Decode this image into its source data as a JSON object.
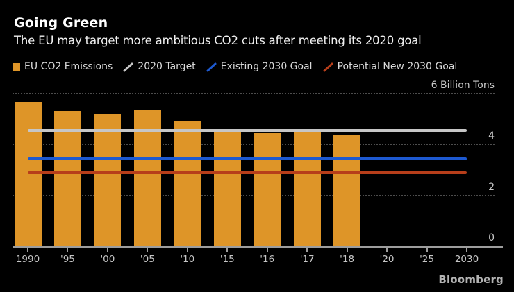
{
  "header": {
    "title": "Going Green",
    "subtitle": "The EU may target more ambitious CO2 cuts after meeting its 2020 goal"
  },
  "legend": {
    "items": [
      {
        "label": "EU CO2 Emissions",
        "swatch": "square",
        "color": "#de9528"
      },
      {
        "label": "2020 Target",
        "swatch": "line",
        "color": "#c6c6c6"
      },
      {
        "label": "Existing 2030 Goal",
        "swatch": "line",
        "color": "#1d59d0"
      },
      {
        "label": "Potential New 2030 Goal",
        "swatch": "line",
        "color": "#b73e1a"
      }
    ]
  },
  "chart_data": {
    "type": "bar",
    "title": "Going Green",
    "subtitle": "The EU may target more ambitious CO2 cuts after meeting its 2020 goal",
    "unit": "Billion Tons",
    "categories": [
      "1990",
      "'95",
      "'00",
      "'05",
      "'10",
      "'15",
      "'16",
      "'17",
      "'18",
      "'20",
      "'25",
      "2030"
    ],
    "bar_series": {
      "name": "EU CO2 Emissions",
      "color": "#de9528",
      "values": [
        5.67,
        5.33,
        5.22,
        5.34,
        4.9,
        4.46,
        4.44,
        4.48,
        4.37,
        null,
        null,
        null
      ]
    },
    "reference_lines": [
      {
        "name": "2020 Target",
        "value": 4.55,
        "color": "#c6c6c6"
      },
      {
        "name": "Existing 2030 Goal",
        "value": 3.45,
        "color": "#1d59d0"
      },
      {
        "name": "Potential New 2030 Goal",
        "value": 2.9,
        "color": "#b73e1a"
      }
    ],
    "ylim": [
      0,
      6
    ],
    "yticks": [
      {
        "value": 6,
        "label": "6 Billion Tons"
      },
      {
        "value": 4,
        "label": "4"
      },
      {
        "value": 2,
        "label": "2"
      },
      {
        "value": 0,
        "label": "0"
      }
    ],
    "grid": "horizontal dotted",
    "legend_position": "top"
  },
  "footer": {
    "brand": "Bloomberg"
  }
}
